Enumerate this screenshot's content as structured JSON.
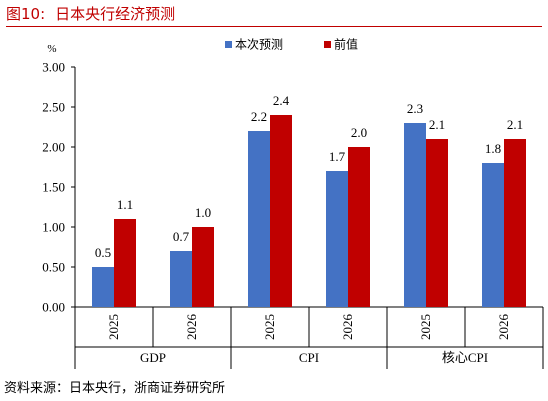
{
  "header": {
    "figure_no": "图10:",
    "title": "日本央行经济预测"
  },
  "source": "资料来源：日本央行，浙商证券研究所",
  "colors": {
    "current": "#4472c4",
    "previous": "#c00000",
    "title": "#c00000"
  },
  "chart_data": {
    "type": "bar",
    "unit": "%",
    "ylim": [
      0,
      3
    ],
    "yticks": [
      "0.00",
      "0.50",
      "1.00",
      "1.50",
      "2.00",
      "2.50",
      "3.00"
    ],
    "ytick_values": [
      0,
      0.5,
      1,
      1.5,
      2,
      2.5,
      3
    ],
    "grid": false,
    "legend_position": "top",
    "groups": [
      {
        "name": "GDP",
        "categories": [
          "2025",
          "2026"
        ]
      },
      {
        "name": "CPI",
        "categories": [
          "2025",
          "2026"
        ]
      },
      {
        "name": "核心CPI",
        "categories": [
          "2025",
          "2026"
        ]
      }
    ],
    "series": [
      {
        "name": "本次预测",
        "values": [
          0.5,
          0.7,
          2.2,
          1.7,
          2.3,
          1.8
        ],
        "labels": [
          "0.5",
          "0.7",
          "2.2",
          "1.7",
          "2.3",
          "1.8"
        ]
      },
      {
        "name": "前值",
        "values": [
          1.1,
          1.0,
          2.4,
          2.0,
          2.1,
          2.1
        ],
        "labels": [
          "1.1",
          "1.0",
          "2.4",
          "2.0",
          "2.1",
          "2.1"
        ]
      }
    ]
  }
}
